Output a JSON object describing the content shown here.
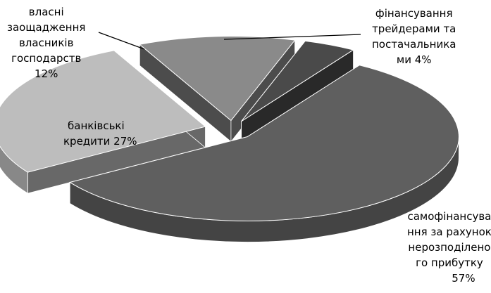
{
  "chart_data": {
    "type": "pie",
    "title": "",
    "style": "3d-exploded",
    "slices": [
      {
        "label_lines": [
          "самофінансува",
          "ння за рахунок",
          "нерозподілено",
          "го прибутку",
          "57%"
        ],
        "value": 57,
        "color": "#5f5f5f"
      },
      {
        "label_lines": [
          "банківські",
          "кредити 27%"
        ],
        "value": 27,
        "color": "#bdbdbd"
      },
      {
        "label_lines": [
          "власні",
          "заощадження",
          "власників",
          "господарств",
          "12%"
        ],
        "value": 12,
        "color": "#8a8a8a"
      },
      {
        "label_lines": [
          "фінансування",
          "трейдерами та",
          "постачальника",
          "ми  4%"
        ],
        "value": 4,
        "color": "#4a4a4a"
      }
    ]
  }
}
